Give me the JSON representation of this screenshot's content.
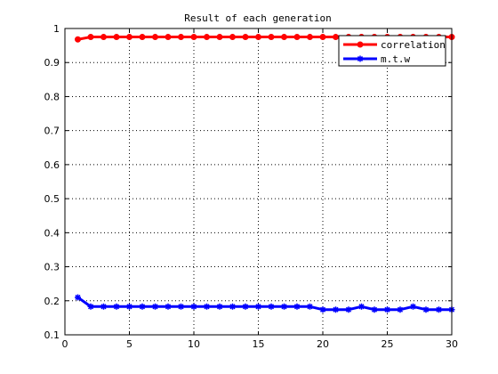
{
  "chart_data": {
    "type": "line",
    "title": "Result of each generation",
    "xlabel": "",
    "ylabel": "",
    "xlim": [
      0,
      30
    ],
    "ylim": [
      0.1,
      1
    ],
    "grid": true,
    "legend_position": "top-right",
    "x_ticks": [
      0,
      5,
      10,
      15,
      20,
      25,
      30
    ],
    "x_tick_labels": [
      "0",
      "5",
      "10",
      "15",
      "20",
      "25",
      "30"
    ],
    "y_ticks": [
      0.1,
      0.2,
      0.3,
      0.4,
      0.5,
      0.6,
      0.7,
      0.8,
      0.9,
      1
    ],
    "y_tick_labels": [
      "0.1",
      "0.2",
      "0.3",
      "0.4",
      "0.5",
      "0.6",
      "0.7",
      "0.8",
      "0.9",
      "1"
    ],
    "x": [
      1,
      2,
      3,
      4,
      5,
      6,
      7,
      8,
      9,
      10,
      11,
      12,
      13,
      14,
      15,
      16,
      17,
      18,
      19,
      20,
      21,
      22,
      23,
      24,
      25,
      26,
      27,
      28,
      29,
      30
    ],
    "series": [
      {
        "name": "correlation",
        "color": "#ff0000",
        "marker": "dot",
        "values": [
          0.968,
          0.975,
          0.975,
          0.975,
          0.975,
          0.975,
          0.975,
          0.975,
          0.975,
          0.975,
          0.975,
          0.975,
          0.975,
          0.975,
          0.975,
          0.975,
          0.975,
          0.975,
          0.975,
          0.975,
          0.975,
          0.975,
          0.975,
          0.975,
          0.975,
          0.975,
          0.975,
          0.975,
          0.975,
          0.975
        ]
      },
      {
        "name": "m.t.w",
        "color": "#0000ff",
        "marker": "star",
        "values": [
          0.21,
          0.183,
          0.183,
          0.183,
          0.183,
          0.183,
          0.183,
          0.183,
          0.183,
          0.183,
          0.183,
          0.183,
          0.183,
          0.183,
          0.183,
          0.183,
          0.183,
          0.183,
          0.183,
          0.174,
          0.174,
          0.174,
          0.183,
          0.174,
          0.174,
          0.174,
          0.183,
          0.174,
          0.174,
          0.174
        ]
      }
    ]
  }
}
